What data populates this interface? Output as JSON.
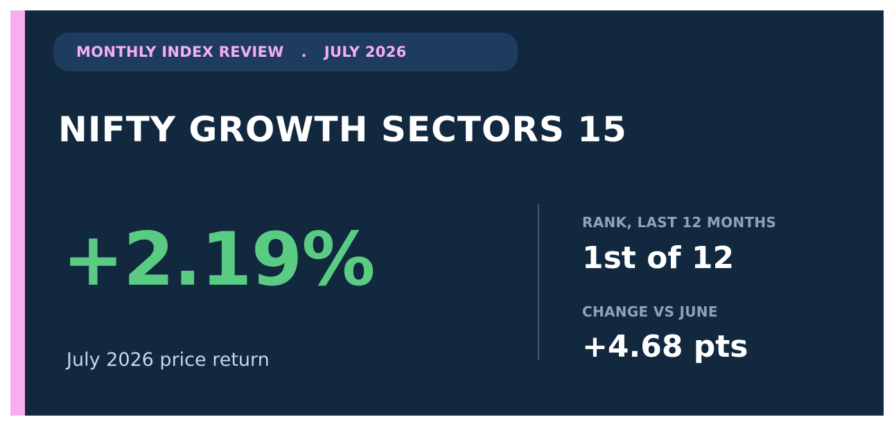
{
  "header": {
    "label": "MONTHLY INDEX REVIEW",
    "separator": ".",
    "period": "JULY 2026"
  },
  "title": "NIFTY GROWTH SECTORS 15",
  "headline": {
    "value": "+2.19%",
    "caption": "July 2026 price return"
  },
  "stats": {
    "rank": {
      "label": "RANK, LAST 12 MONTHS",
      "value": "1st of 12"
    },
    "change": {
      "label": "CHANGE VS JUNE",
      "value": "+4.68 pts"
    }
  },
  "colors": {
    "background": "#11283f",
    "accent": "#f7aef1",
    "positive": "#5acb82",
    "pill": "#1d3c5e"
  }
}
